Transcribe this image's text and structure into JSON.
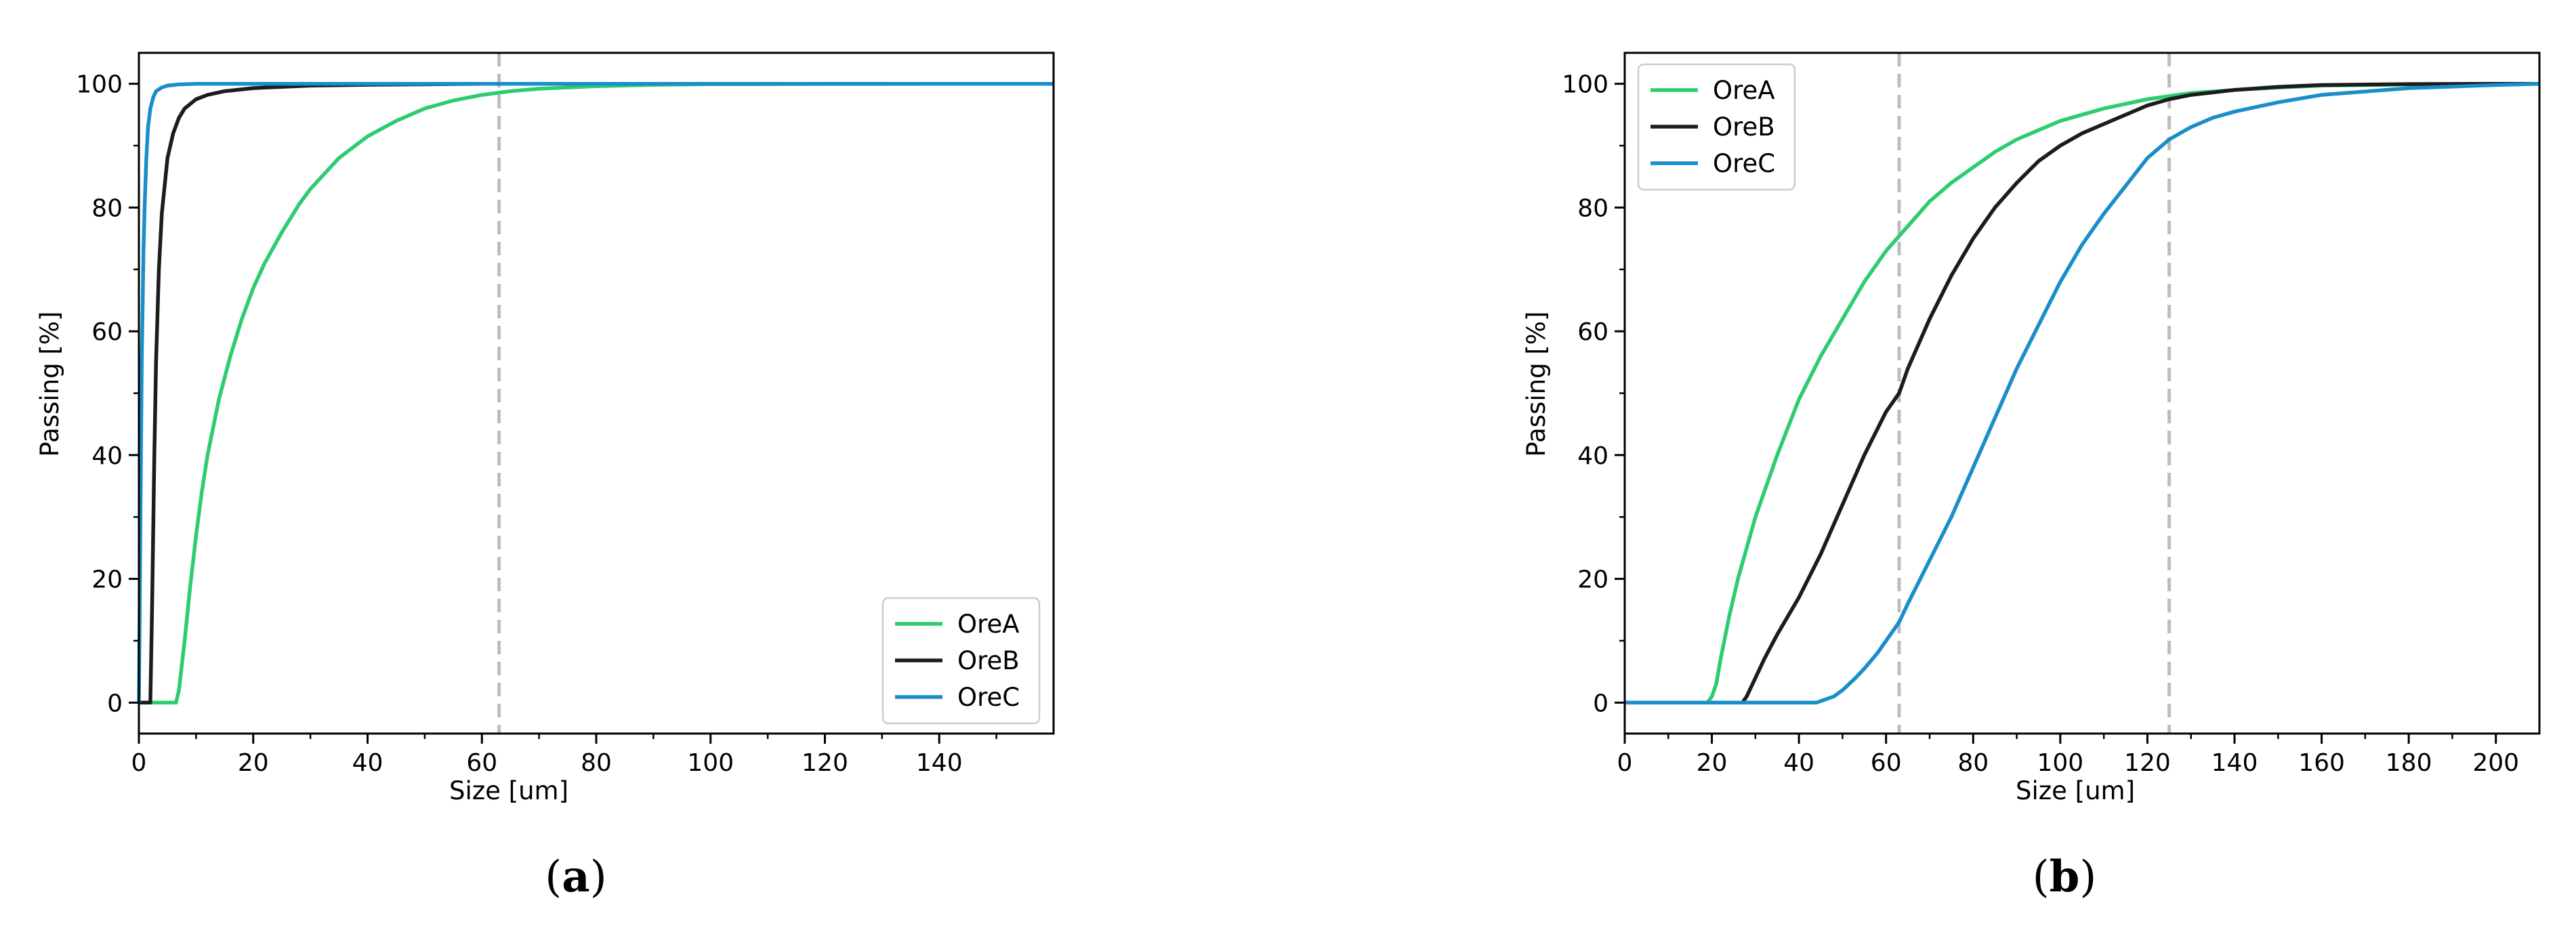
{
  "chart_data": [
    {
      "type": "line",
      "panel_label": "a",
      "xlabel": "Size [um]",
      "ylabel": "Passing [%]",
      "xlim": [
        0,
        160
      ],
      "ylim": [
        -5,
        105
      ],
      "xticks": [
        0,
        20,
        40,
        60,
        80,
        100,
        120,
        140
      ],
      "yticks": [
        0,
        20,
        40,
        60,
        80,
        100
      ],
      "grid": false,
      "legend_position": "bottom-right",
      "vlines": [
        63
      ],
      "series": [
        {
          "name": "OreA",
          "color": "#2ecc71",
          "x": [
            0,
            6.5,
            7,
            8,
            9,
            10,
            11,
            12,
            14,
            16,
            18,
            20,
            22,
            25,
            28,
            30,
            35,
            40,
            45,
            50,
            55,
            60,
            65,
            70,
            80,
            90,
            100,
            120,
            140,
            160
          ],
          "y": [
            0,
            0,
            2,
            10,
            19,
            27,
            34,
            40,
            49,
            56,
            62,
            67,
            71,
            76,
            80.5,
            83,
            88,
            91.5,
            94,
            96,
            97.3,
            98.2,
            98.8,
            99.2,
            99.6,
            99.85,
            99.93,
            99.98,
            100,
            100
          ]
        },
        {
          "name": "OreB",
          "color": "#1c1c1c",
          "x": [
            0,
            2,
            2.3,
            2.7,
            3,
            3.5,
            4,
            5,
            6,
            7,
            8,
            10,
            12,
            15,
            20,
            30,
            40,
            60,
            80,
            100,
            160
          ],
          "y": [
            0,
            0,
            15,
            40,
            55,
            70,
            79,
            88,
            92,
            94.5,
            96,
            97.5,
            98.2,
            98.8,
            99.3,
            99.7,
            99.85,
            100,
            100,
            100,
            100
          ]
        },
        {
          "name": "OreC",
          "color": "#1a8ec9",
          "x": [
            0,
            0.2,
            0.5,
            0.8,
            1,
            1.3,
            1.6,
            2,
            2.5,
            3,
            4,
            5,
            7,
            10,
            20,
            160
          ],
          "y": [
            0,
            22,
            55,
            73,
            80,
            88,
            93,
            96,
            97.8,
            98.8,
            99.4,
            99.7,
            99.9,
            100,
            100,
            100
          ]
        }
      ]
    },
    {
      "type": "line",
      "panel_label": "b",
      "xlabel": "Size [um]",
      "ylabel": "Passing [%]",
      "xlim": [
        0,
        210
      ],
      "ylim": [
        -5,
        105
      ],
      "xticks": [
        0,
        20,
        40,
        60,
        80,
        100,
        120,
        140,
        160,
        180,
        200
      ],
      "yticks": [
        0,
        20,
        40,
        60,
        80,
        100
      ],
      "grid": false,
      "legend_position": "top-left",
      "vlines": [
        63,
        125
      ],
      "series": [
        {
          "name": "OreA",
          "color": "#2ecc71",
          "x": [
            0,
            19,
            20,
            21,
            22,
            24,
            26,
            28,
            30,
            35,
            40,
            45,
            50,
            55,
            60,
            65,
            70,
            75,
            80,
            85,
            90,
            95,
            100,
            110,
            120,
            130,
            140,
            150,
            160,
            180,
            200,
            210
          ],
          "y": [
            0,
            0,
            1,
            3,
            7,
            14,
            20,
            25,
            30,
            40,
            49,
            56,
            62,
            68,
            73,
            77,
            81,
            84,
            86.5,
            89,
            91,
            92.5,
            94,
            96,
            97.5,
            98.5,
            99,
            99.4,
            99.7,
            99.9,
            100,
            100
          ]
        },
        {
          "name": "OreB",
          "color": "#1c1c1c",
          "x": [
            0,
            27,
            28,
            30,
            32,
            35,
            40,
            45,
            50,
            55,
            60,
            63,
            65,
            70,
            75,
            80,
            85,
            90,
            95,
            100,
            105,
            110,
            115,
            120,
            125,
            130,
            140,
            150,
            160,
            180,
            200,
            210
          ],
          "y": [
            0,
            0,
            1,
            4,
            7,
            11,
            17,
            24,
            32,
            40,
            47,
            50,
            54,
            62,
            69,
            75,
            80,
            84,
            87.5,
            90,
            92,
            93.5,
            95,
            96.5,
            97.5,
            98.2,
            99,
            99.5,
            99.8,
            99.95,
            100,
            100
          ]
        },
        {
          "name": "OreC",
          "color": "#1a8ec9",
          "x": [
            0,
            44,
            46,
            48,
            50,
            53,
            55,
            58,
            60,
            63,
            65,
            70,
            75,
            80,
            85,
            90,
            95,
            100,
            105,
            110,
            115,
            120,
            125,
            130,
            135,
            140,
            150,
            160,
            180,
            200,
            210
          ],
          "y": [
            0,
            0,
            0.5,
            1,
            2,
            4,
            5.5,
            8,
            10,
            13,
            16,
            23,
            30,
            38,
            46,
            54,
            61,
            68,
            74,
            79,
            83.5,
            88,
            91,
            93,
            94.5,
            95.5,
            97,
            98.2,
            99.3,
            99.8,
            100
          ]
        }
      ]
    }
  ]
}
